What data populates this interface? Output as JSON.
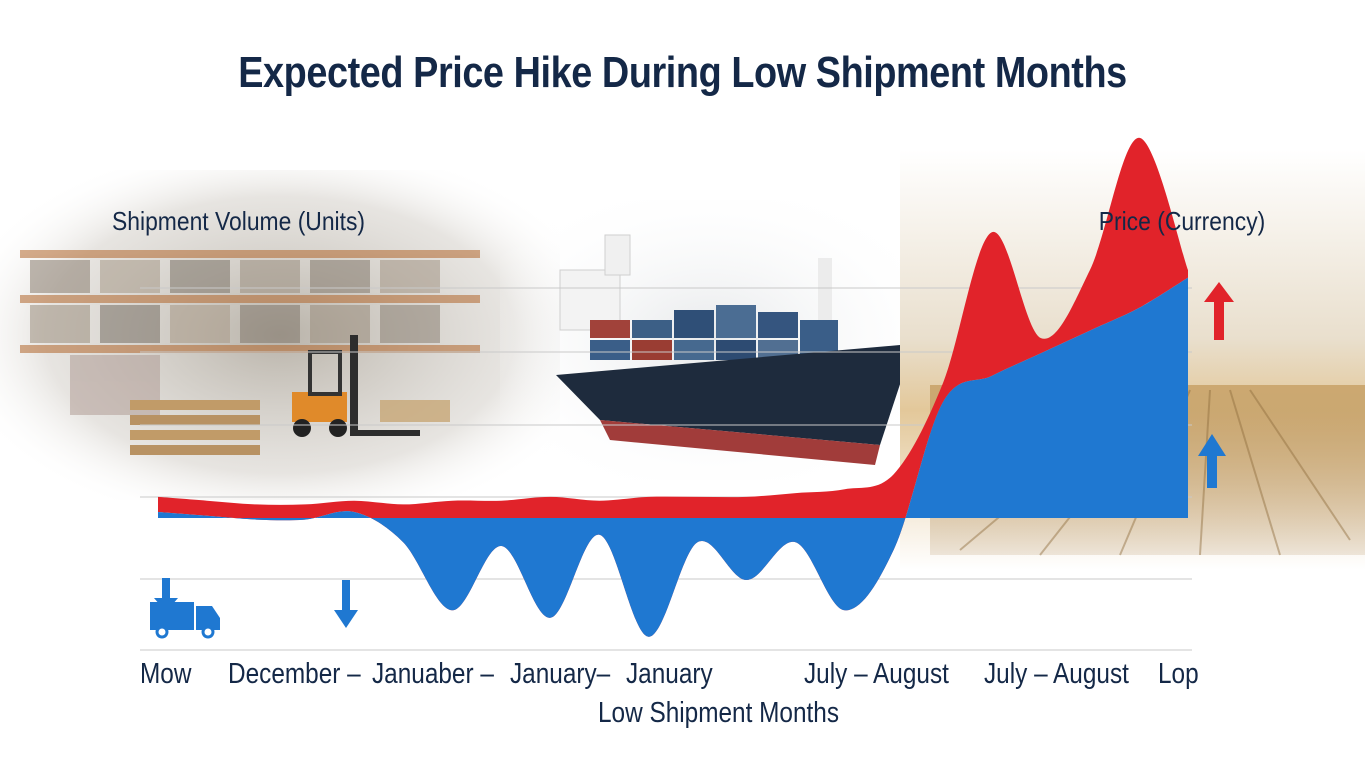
{
  "colors": {
    "title": "#142847",
    "shipment": "#1f78d1",
    "price": "#e1232a",
    "grid": "#c9c9c9"
  },
  "icons": {
    "truck": "delivery-truck-icon",
    "down": "down-arrow-icon",
    "up_red": "red-up-arrow-icon",
    "up_blue": "blue-up-arrow-icon"
  },
  "chart_data": {
    "type": "area",
    "title": "Expected Price Hike During Low Shipment Months",
    "ylabel_left": "Shipment Volume (Units)",
    "ylabel_right": "Price (Currency)",
    "xlabel": "Low Shipment Months",
    "x_tick_labels": [
      "Mow",
      "December –",
      "Januaber –",
      "January–",
      "January",
      "July – August",
      "July – August",
      "Lop"
    ],
    "grid": true,
    "series": [
      {
        "values": [
          0.36,
          0.35,
          0.34,
          0.34,
          0.36,
          0.28,
          0.1,
          0.27,
          0.08,
          0.3,
          0.03,
          0.28,
          0.18,
          0.28,
          0.1,
          0.26,
          0.65,
          0.72,
          0.78,
          0.84,
          0.9,
          0.98
        ]
      },
      {
        "values": [
          0.4,
          0.39,
          0.38,
          0.38,
          0.39,
          0.38,
          0.39,
          0.39,
          0.4,
          0.39,
          0.4,
          0.4,
          0.4,
          0.41,
          0.42,
          0.46,
          0.7,
          1.1,
          0.82,
          1.0,
          1.35,
          1.0
        ]
      }
    ]
  }
}
